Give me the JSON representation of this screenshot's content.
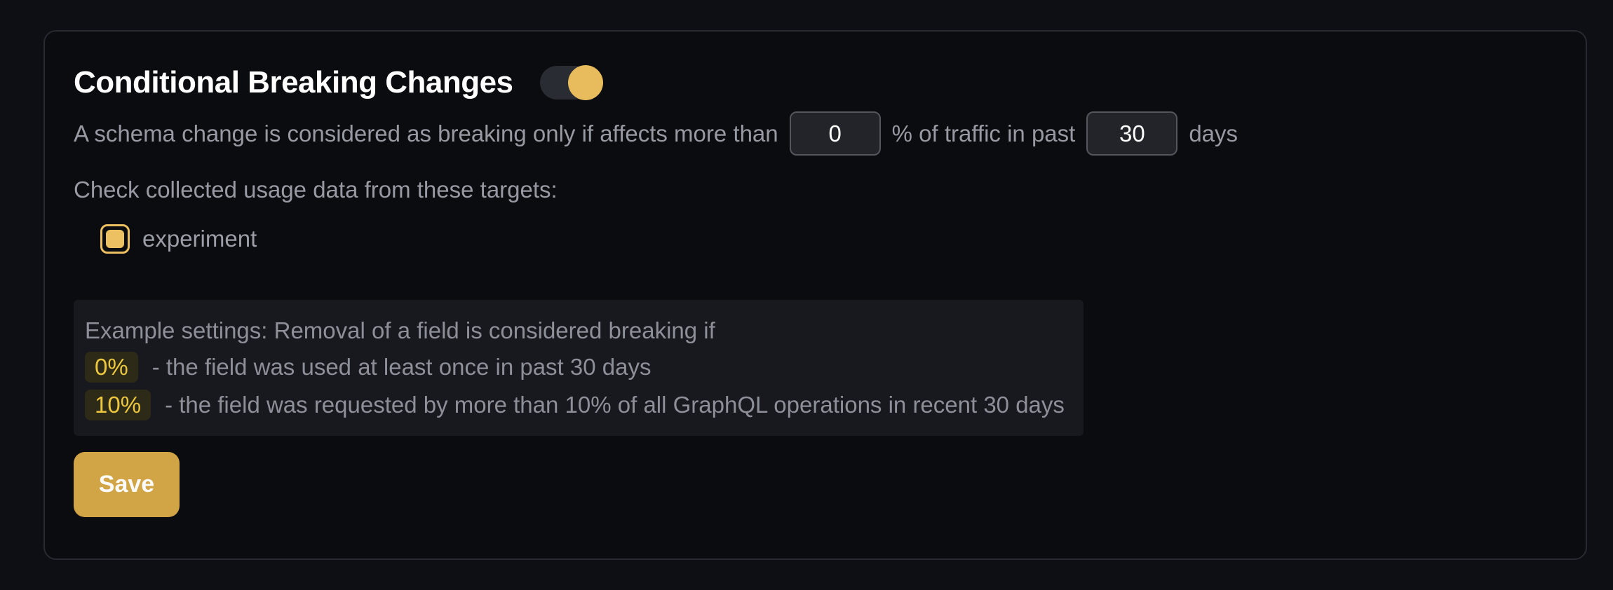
{
  "panel": {
    "title": "Conditional Breaking Changes",
    "toggle_state": "on"
  },
  "threshold": {
    "text_before": "A schema change is considered as breaking only if affects more than",
    "percentage_value": "0",
    "text_middle": "% of traffic in past",
    "days_value": "30",
    "text_after": "days"
  },
  "targets": {
    "label": "Check collected usage data from these targets:",
    "items": [
      {
        "name": "experiment",
        "checked": true
      }
    ]
  },
  "example": {
    "intro": "Example settings: Removal of a field is considered breaking if",
    "rows": [
      {
        "badge": "0%",
        "text": "- the field was used at least once in past 30 days"
      },
      {
        "badge": "10%",
        "text": "- the field was requested by more than 10% of all GraphQL operations in recent 30 days"
      }
    ]
  },
  "actions": {
    "save_label": "Save"
  },
  "colors": {
    "accent_yellow": "#e8bc5c",
    "checkbox_yellow": "#edc161",
    "badge_text": "#edc73e",
    "badge_bg": "#2d2a17",
    "save_button": "#d1a445",
    "card_bg": "#0b0c10",
    "card_border": "#272a31",
    "example_box_bg": "#18191f",
    "body_text": "#979aa2",
    "input_border": "#54565e"
  }
}
